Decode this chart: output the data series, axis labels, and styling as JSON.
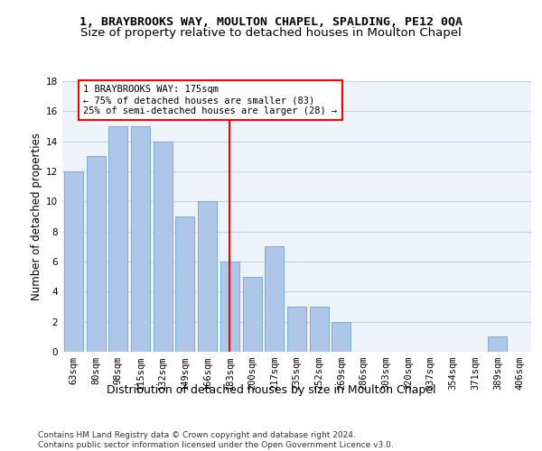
{
  "title_line1": "1, BRAYBROOKS WAY, MOULTON CHAPEL, SPALDING, PE12 0QA",
  "title_line2": "Size of property relative to detached houses in Moulton Chapel",
  "xlabel": "Distribution of detached houses by size in Moulton Chapel",
  "ylabel": "Number of detached properties",
  "categories": [
    "63sqm",
    "80sqm",
    "98sqm",
    "115sqm",
    "132sqm",
    "149sqm",
    "166sqm",
    "183sqm",
    "200sqm",
    "217sqm",
    "235sqm",
    "252sqm",
    "269sqm",
    "286sqm",
    "303sqm",
    "320sqm",
    "337sqm",
    "354sqm",
    "371sqm",
    "389sqm",
    "406sqm"
  ],
  "values": [
    12,
    13,
    15,
    15,
    14,
    9,
    10,
    6,
    5,
    7,
    3,
    3,
    2,
    0,
    0,
    0,
    0,
    0,
    0,
    1,
    0
  ],
  "bar_color": "#aec6e8",
  "bar_edge_color": "#7aadd4",
  "vline_color": "red",
  "vline_x_index": 7,
  "annotation_text_line1": "1 BRAYBROOKS WAY: 175sqm",
  "annotation_text_line2": "← 75% of detached houses are smaller (83)",
  "annotation_text_line3": "25% of semi-detached houses are larger (28) →",
  "annotation_box_color": "white",
  "annotation_box_edge_color": "red",
  "ylim": [
    0,
    18
  ],
  "yticks": [
    0,
    2,
    4,
    6,
    8,
    10,
    12,
    14,
    16,
    18
  ],
  "footer_text": "Contains HM Land Registry data © Crown copyright and database right 2024.\nContains public sector information licensed under the Open Government Licence v3.0.",
  "background_color": "#eef2f9",
  "grid_color": "#c8d4e8",
  "title1_fontsize": 9.5,
  "title2_fontsize": 9.5,
  "ylabel_fontsize": 8.5,
  "xlabel_fontsize": 9,
  "tick_fontsize": 7.5,
  "annotation_fontsize": 7.5,
  "footer_fontsize": 6.5
}
